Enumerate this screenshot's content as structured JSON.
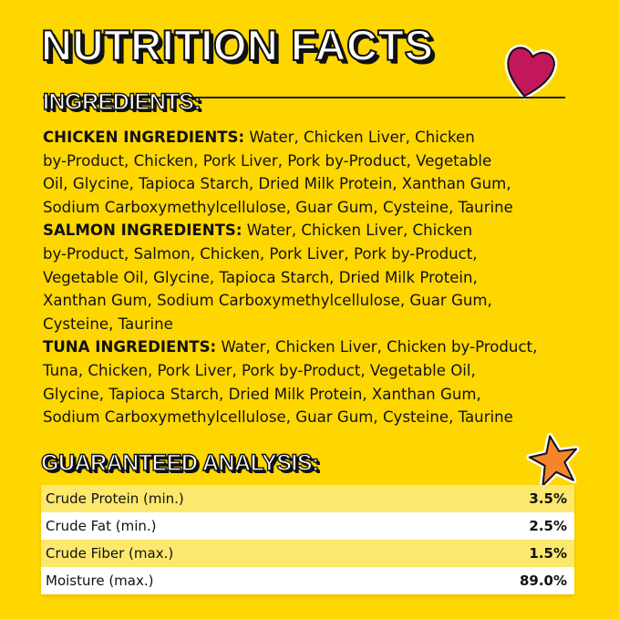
{
  "title": "NUTRITION FACTS",
  "ingredients_heading": "INGREDIENTS:",
  "ingredients": [
    {
      "label": "CHICKEN INGREDIENTS:",
      "lines": [
        " Water, Chicken Liver, Chicken",
        "by-Product, Chicken, Pork Liver, Pork by-Product, Vegetable",
        "Oil, Glycine, Tapioca Starch, Dried Milk Protein, Xanthan Gum,",
        "Sodium Carboxymethylcellulose, Guar Gum, Cysteine, Taurine"
      ]
    },
    {
      "label": "SALMON INGREDIENTS:",
      "lines": [
        " Water, Chicken Liver, Chicken",
        "by-Product, Salmon, Chicken, Pork Liver, Pork by-Product,",
        "Vegetable Oil, Glycine, Tapioca Starch, Dried Milk Protein,",
        "Xanthan Gum, Sodium Carboxymethylcellulose, Guar Gum,",
        "Cysteine, Taurine"
      ]
    },
    {
      "label": "TUNA INGREDIENTS:",
      "lines": [
        " Water, Chicken Liver, Chicken by-Product,",
        "Tuna, Chicken, Pork Liver, Pork by-Product, Vegetable Oil,",
        "Glycine, Tapioca Starch, Dried Milk Protein, Xanthan Gum,",
        "Sodium Carboxymethylcellulose, Guar Gum, Cysteine, Taurine"
      ]
    }
  ],
  "analysis_heading": "GUARANTEED ANALYSIS:",
  "analysis": [
    {
      "name": "Crude Protein (min.)",
      "value": "3.5%"
    },
    {
      "name": "Crude Fat (min.)",
      "value": "2.5%"
    },
    {
      "name": "Crude Fiber (max.)",
      "value": "1.5%"
    },
    {
      "name": "Moisture (max.)",
      "value": "89.0%"
    }
  ],
  "icons": {
    "heart": "heart-icon",
    "star": "star-icon"
  },
  "colors": {
    "background": "#FFD700",
    "heart": "#C2185B",
    "star": "#F5842B",
    "row_alt": "#FDE86E"
  }
}
